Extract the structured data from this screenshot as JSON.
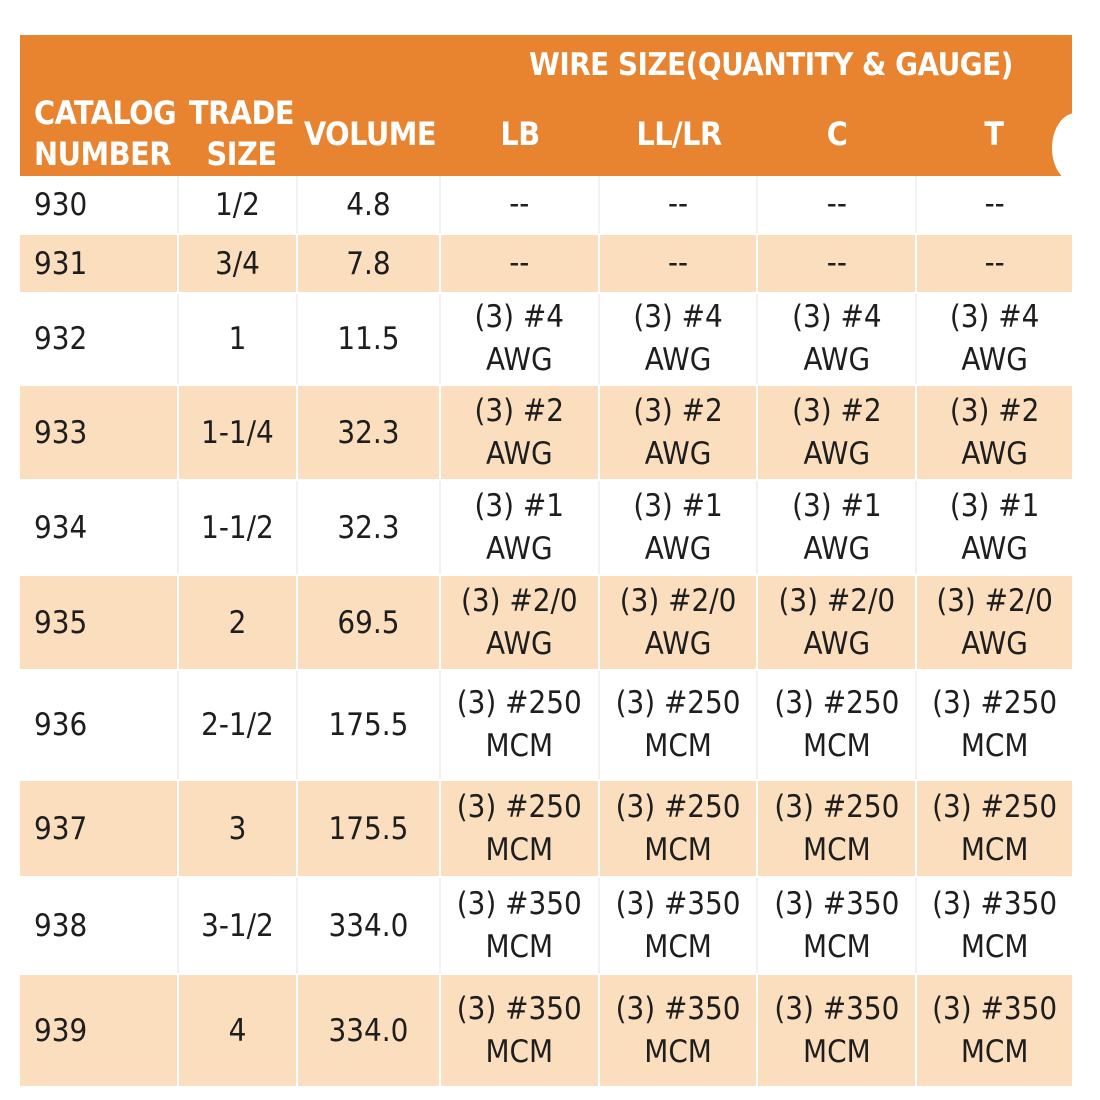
{
  "header": {
    "group_title": "WIRE SIZE(QUANTITY & GAUGE)",
    "catalog_line1": "CATALOG",
    "catalog_line2": "NUMBER",
    "trade_line1": "TRADE",
    "trade_line2": "SIZE",
    "volume": "VOLUME",
    "lb": "LB",
    "llr": "LL/LR",
    "c": "C",
    "t": "T"
  },
  "colors": {
    "header_bg": "#e8832f",
    "row_shade": "#fbdebe",
    "row_white": "#ffffff"
  },
  "rows": [
    {
      "catalog": "930",
      "trade": "1/2",
      "volume": "4.8",
      "lb": [
        "--",
        ""
      ],
      "llr": [
        "--",
        ""
      ],
      "c": [
        "--",
        ""
      ],
      "t": [
        "--",
        ""
      ]
    },
    {
      "catalog": "931",
      "trade": "3/4",
      "volume": "7.8",
      "lb": [
        "--",
        ""
      ],
      "llr": [
        "--",
        ""
      ],
      "c": [
        "--",
        ""
      ],
      "t": [
        "--",
        ""
      ]
    },
    {
      "catalog": "932",
      "trade": "1",
      "volume": "11.5",
      "lb": [
        "(3) #4",
        "AWG"
      ],
      "llr": [
        "(3) #4",
        "AWG"
      ],
      "c": [
        "(3) #4",
        "AWG"
      ],
      "t": [
        "(3) #4",
        "AWG"
      ]
    },
    {
      "catalog": "933",
      "trade": "1-1/4",
      "volume": "32.3",
      "lb": [
        "(3) #2",
        "AWG"
      ],
      "llr": [
        "(3) #2",
        "AWG"
      ],
      "c": [
        "(3) #2",
        "AWG"
      ],
      "t": [
        "(3) #2",
        "AWG"
      ]
    },
    {
      "catalog": "934",
      "trade": "1-1/2",
      "volume": "32.3",
      "lb": [
        "(3) #1",
        "AWG"
      ],
      "llr": [
        "(3) #1",
        "AWG"
      ],
      "c": [
        "(3) #1",
        "AWG"
      ],
      "t": [
        "(3) #1",
        "AWG"
      ]
    },
    {
      "catalog": "935",
      "trade": "2",
      "volume": "69.5",
      "lb": [
        "(3) #2/0",
        "AWG"
      ],
      "llr": [
        "(3) #2/0",
        "AWG"
      ],
      "c": [
        "(3) #2/0",
        "AWG"
      ],
      "t": [
        "(3) #2/0",
        "AWG"
      ]
    },
    {
      "catalog": "936",
      "trade": "2-1/2",
      "volume": "175.5",
      "lb": [
        "(3) #250",
        "MCM"
      ],
      "llr": [
        "(3) #250",
        "MCM"
      ],
      "c": [
        "(3) #250",
        "MCM"
      ],
      "t": [
        "(3) #250",
        "MCM"
      ]
    },
    {
      "catalog": "937",
      "trade": "3",
      "volume": "175.5",
      "lb": [
        "(3) #250",
        "MCM"
      ],
      "llr": [
        "(3) #250",
        "MCM"
      ],
      "c": [
        "(3) #250",
        "MCM"
      ],
      "t": [
        "(3) #250",
        "MCM"
      ]
    },
    {
      "catalog": "938",
      "trade": "3-1/2",
      "volume": "334.0",
      "lb": [
        "(3) #350",
        "MCM"
      ],
      "llr": [
        "(3) #350",
        "MCM"
      ],
      "c": [
        "(3) #350",
        "MCM"
      ],
      "t": [
        "(3) #350",
        "MCM"
      ]
    },
    {
      "catalog": "939",
      "trade": "4",
      "volume": "334.0",
      "lb": [
        "(3) #350",
        "MCM"
      ],
      "llr": [
        "(3) #350",
        "MCM"
      ],
      "c": [
        "(3) #350",
        "MCM"
      ],
      "t": [
        "(3) #350",
        "MCM"
      ]
    }
  ]
}
